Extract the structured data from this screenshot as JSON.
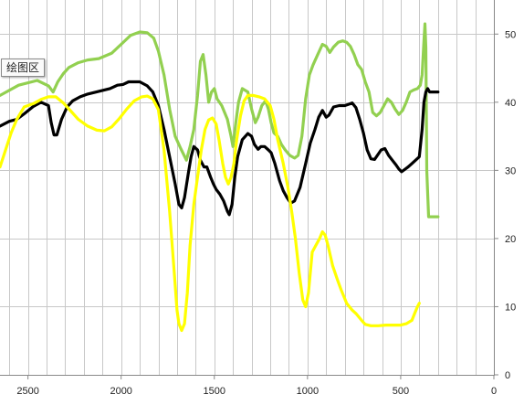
{
  "tooltip": {
    "label": "绘图区"
  },
  "chart_data": {
    "type": "line",
    "xlabel": "",
    "ylabel": "",
    "xlim": [
      2650,
      0
    ],
    "ylim": [
      0,
      55
    ],
    "x_ticks": [
      2500,
      2000,
      1500,
      1000,
      500,
      0
    ],
    "y_ticks": [
      0,
      10,
      20,
      30,
      40,
      50
    ],
    "x_gridlines_every": 100,
    "grid": true,
    "legend": "none",
    "series": [
      {
        "color": "#92d050",
        "points": [
          [
            2650,
            41
          ],
          [
            2550,
            42.5
          ],
          [
            2450,
            43.2
          ],
          [
            2390,
            42.4
          ],
          [
            2365,
            41.5
          ],
          [
            2340,
            43
          ],
          [
            2310,
            44.2
          ],
          [
            2280,
            45.1
          ],
          [
            2230,
            45.8
          ],
          [
            2180,
            46.2
          ],
          [
            2120,
            46.4
          ],
          [
            2050,
            47.2
          ],
          [
            2000,
            48.5
          ],
          [
            1950,
            49.8
          ],
          [
            1900,
            50.3
          ],
          [
            1860,
            50.2
          ],
          [
            1825,
            49.4
          ],
          [
            1800,
            47.5
          ],
          [
            1770,
            44
          ],
          [
            1740,
            39
          ],
          [
            1710,
            35
          ],
          [
            1680,
            33.2
          ],
          [
            1650,
            31.5
          ],
          [
            1630,
            33.5
          ],
          [
            1610,
            36
          ],
          [
            1590,
            41
          ],
          [
            1575,
            46
          ],
          [
            1560,
            47
          ],
          [
            1545,
            44
          ],
          [
            1530,
            40
          ],
          [
            1515,
            41.5
          ],
          [
            1500,
            42
          ],
          [
            1485,
            40.5
          ],
          [
            1460,
            39.5
          ],
          [
            1430,
            37.5
          ],
          [
            1410,
            35
          ],
          [
            1400,
            33.5
          ],
          [
            1385,
            37
          ],
          [
            1370,
            40
          ],
          [
            1350,
            42
          ],
          [
            1320,
            41.5
          ],
          [
            1300,
            39
          ],
          [
            1280,
            37
          ],
          [
            1265,
            37.8
          ],
          [
            1245,
            39.5
          ],
          [
            1225,
            40.2
          ],
          [
            1210,
            39
          ],
          [
            1195,
            37
          ],
          [
            1180,
            35.5
          ],
          [
            1160,
            35
          ],
          [
            1140,
            33.8
          ],
          [
            1120,
            33
          ],
          [
            1095,
            32.2
          ],
          [
            1070,
            31.8
          ],
          [
            1050,
            32.2
          ],
          [
            1030,
            35
          ],
          [
            1010,
            40.5
          ],
          [
            990,
            44
          ],
          [
            970,
            45.5
          ],
          [
            945,
            47
          ],
          [
            920,
            48.5
          ],
          [
            900,
            48.2
          ],
          [
            880,
            47.3
          ],
          [
            860,
            48.1
          ],
          [
            835,
            48.8
          ],
          [
            810,
            49
          ],
          [
            790,
            48.8
          ],
          [
            770,
            48.2
          ],
          [
            750,
            47
          ],
          [
            730,
            45.5
          ],
          [
            710,
            44.8
          ],
          [
            690,
            43
          ],
          [
            670,
            41.5
          ],
          [
            650,
            38.5
          ],
          [
            630,
            38
          ],
          [
            610,
            38.5
          ],
          [
            590,
            39.5
          ],
          [
            570,
            40.5
          ],
          [
            550,
            40
          ],
          [
            530,
            39
          ],
          [
            510,
            38.2
          ],
          [
            490,
            38.8
          ],
          [
            470,
            40
          ],
          [
            450,
            41.5
          ],
          [
            430,
            41.8
          ],
          [
            410,
            42
          ],
          [
            395,
            42.5
          ],
          [
            385,
            44
          ],
          [
            375,
            49
          ],
          [
            370,
            51.5
          ],
          [
            365,
            48
          ],
          [
            360,
            30
          ],
          [
            350,
            23.2
          ],
          [
            300,
            23.2
          ]
        ]
      },
      {
        "color": "#000000",
        "points": [
          [
            2650,
            36.5
          ],
          [
            2600,
            37.2
          ],
          [
            2560,
            37.5
          ],
          [
            2520,
            38.3
          ],
          [
            2470,
            39.4
          ],
          [
            2430,
            40
          ],
          [
            2390,
            39.5
          ],
          [
            2375,
            37
          ],
          [
            2360,
            35.2
          ],
          [
            2345,
            35.2
          ],
          [
            2320,
            37.5
          ],
          [
            2290,
            39.3
          ],
          [
            2260,
            40.2
          ],
          [
            2220,
            40.8
          ],
          [
            2180,
            41.2
          ],
          [
            2120,
            41.6
          ],
          [
            2060,
            42
          ],
          [
            2020,
            42.5
          ],
          [
            1990,
            42.6
          ],
          [
            1960,
            43
          ],
          [
            1900,
            43
          ],
          [
            1860,
            42.4
          ],
          [
            1830,
            41.5
          ],
          [
            1800,
            39.5
          ],
          [
            1770,
            36
          ],
          [
            1740,
            32
          ],
          [
            1710,
            28
          ],
          [
            1690,
            25
          ],
          [
            1675,
            24.5
          ],
          [
            1660,
            26
          ],
          [
            1640,
            29.5
          ],
          [
            1625,
            32
          ],
          [
            1610,
            33.5
          ],
          [
            1590,
            33
          ],
          [
            1575,
            31.5
          ],
          [
            1555,
            30.5
          ],
          [
            1540,
            30.5
          ],
          [
            1520,
            29
          ],
          [
            1505,
            28
          ],
          [
            1490,
            27.2
          ],
          [
            1470,
            26.5
          ],
          [
            1450,
            25.5
          ],
          [
            1430,
            24
          ],
          [
            1420,
            23.5
          ],
          [
            1405,
            25
          ],
          [
            1390,
            29
          ],
          [
            1375,
            32
          ],
          [
            1350,
            34.5
          ],
          [
            1320,
            35.4
          ],
          [
            1300,
            35
          ],
          [
            1285,
            33.8
          ],
          [
            1265,
            33.1
          ],
          [
            1250,
            33.5
          ],
          [
            1230,
            33.5
          ],
          [
            1210,
            33
          ],
          [
            1195,
            32.6
          ],
          [
            1175,
            31
          ],
          [
            1150,
            28.5
          ],
          [
            1130,
            27
          ],
          [
            1110,
            26
          ],
          [
            1090,
            25.2
          ],
          [
            1070,
            25.5
          ],
          [
            1040,
            27.5
          ],
          [
            1010,
            31
          ],
          [
            985,
            34
          ],
          [
            960,
            36
          ],
          [
            940,
            37.8
          ],
          [
            920,
            38.8
          ],
          [
            900,
            37.8
          ],
          [
            885,
            38.1
          ],
          [
            860,
            39.3
          ],
          [
            830,
            39.5
          ],
          [
            800,
            39.5
          ],
          [
            780,
            39.7
          ],
          [
            760,
            39.9
          ],
          [
            740,
            39.2
          ],
          [
            720,
            37.5
          ],
          [
            700,
            35.5
          ],
          [
            680,
            33
          ],
          [
            660,
            31.7
          ],
          [
            640,
            31.6
          ],
          [
            620,
            32.4
          ],
          [
            605,
            33
          ],
          [
            585,
            33.2
          ],
          [
            565,
            32.2
          ],
          [
            545,
            31.5
          ],
          [
            525,
            30.8
          ],
          [
            510,
            30.2
          ],
          [
            495,
            29.8
          ],
          [
            480,
            30.1
          ],
          [
            460,
            30.5
          ],
          [
            440,
            31
          ],
          [
            420,
            31.5
          ],
          [
            400,
            32
          ],
          [
            385,
            36
          ],
          [
            375,
            40
          ],
          [
            365,
            41.5
          ],
          [
            355,
            42
          ],
          [
            345,
            41.5
          ],
          [
            300,
            41.5
          ]
        ]
      },
      {
        "color": "#ffff00",
        "points": [
          [
            2650,
            30.5
          ],
          [
            2620,
            33
          ],
          [
            2590,
            35.5
          ],
          [
            2560,
            37.5
          ],
          [
            2520,
            39.3
          ],
          [
            2470,
            39.8
          ],
          [
            2430,
            40.4
          ],
          [
            2390,
            40.8
          ],
          [
            2350,
            40.8
          ],
          [
            2310,
            39.9
          ],
          [
            2270,
            38.7
          ],
          [
            2230,
            37.5
          ],
          [
            2180,
            36.5
          ],
          [
            2130,
            35.9
          ],
          [
            2090,
            35.8
          ],
          [
            2050,
            36.4
          ],
          [
            2010,
            37.6
          ],
          [
            1970,
            39
          ],
          [
            1930,
            40.2
          ],
          [
            1890,
            40.8
          ],
          [
            1860,
            40.9
          ],
          [
            1830,
            40.5
          ],
          [
            1800,
            38.9
          ],
          [
            1770,
            33
          ],
          [
            1740,
            24
          ],
          [
            1715,
            15
          ],
          [
            1700,
            9.5
          ],
          [
            1690,
            7.5
          ],
          [
            1675,
            6.5
          ],
          [
            1660,
            7.5
          ],
          [
            1645,
            12
          ],
          [
            1630,
            19
          ],
          [
            1610,
            25
          ],
          [
            1590,
            29
          ],
          [
            1570,
            33
          ],
          [
            1550,
            36
          ],
          [
            1530,
            37.4
          ],
          [
            1510,
            37.7
          ],
          [
            1490,
            36.8
          ],
          [
            1475,
            34.5
          ],
          [
            1455,
            31
          ],
          [
            1440,
            29
          ],
          [
            1425,
            28
          ],
          [
            1410,
            29
          ],
          [
            1395,
            31
          ],
          [
            1380,
            34.5
          ],
          [
            1360,
            38
          ],
          [
            1340,
            40.2
          ],
          [
            1320,
            41
          ],
          [
            1290,
            41
          ],
          [
            1260,
            40.8
          ],
          [
            1230,
            40.5
          ],
          [
            1200,
            39.5
          ],
          [
            1180,
            37.5
          ],
          [
            1160,
            34.5
          ],
          [
            1130,
            31
          ],
          [
            1105,
            27.5
          ],
          [
            1085,
            24
          ],
          [
            1065,
            20
          ],
          [
            1045,
            15
          ],
          [
            1025,
            11
          ],
          [
            1010,
            10
          ],
          [
            995,
            12
          ],
          [
            975,
            18
          ],
          [
            955,
            19
          ],
          [
            935,
            20
          ],
          [
            920,
            21
          ],
          [
            905,
            20.5
          ],
          [
            890,
            19
          ],
          [
            865,
            16
          ],
          [
            840,
            14
          ],
          [
            820,
            12.5
          ],
          [
            790,
            10.5
          ],
          [
            760,
            9.5
          ],
          [
            740,
            9
          ],
          [
            710,
            8
          ],
          [
            690,
            7.4
          ],
          [
            660,
            7.2
          ],
          [
            620,
            7.2
          ],
          [
            580,
            7.3
          ],
          [
            540,
            7.3
          ],
          [
            500,
            7.3
          ],
          [
            470,
            7.5
          ],
          [
            440,
            8
          ],
          [
            425,
            9
          ],
          [
            410,
            10
          ],
          [
            400,
            10.5
          ]
        ]
      }
    ]
  }
}
